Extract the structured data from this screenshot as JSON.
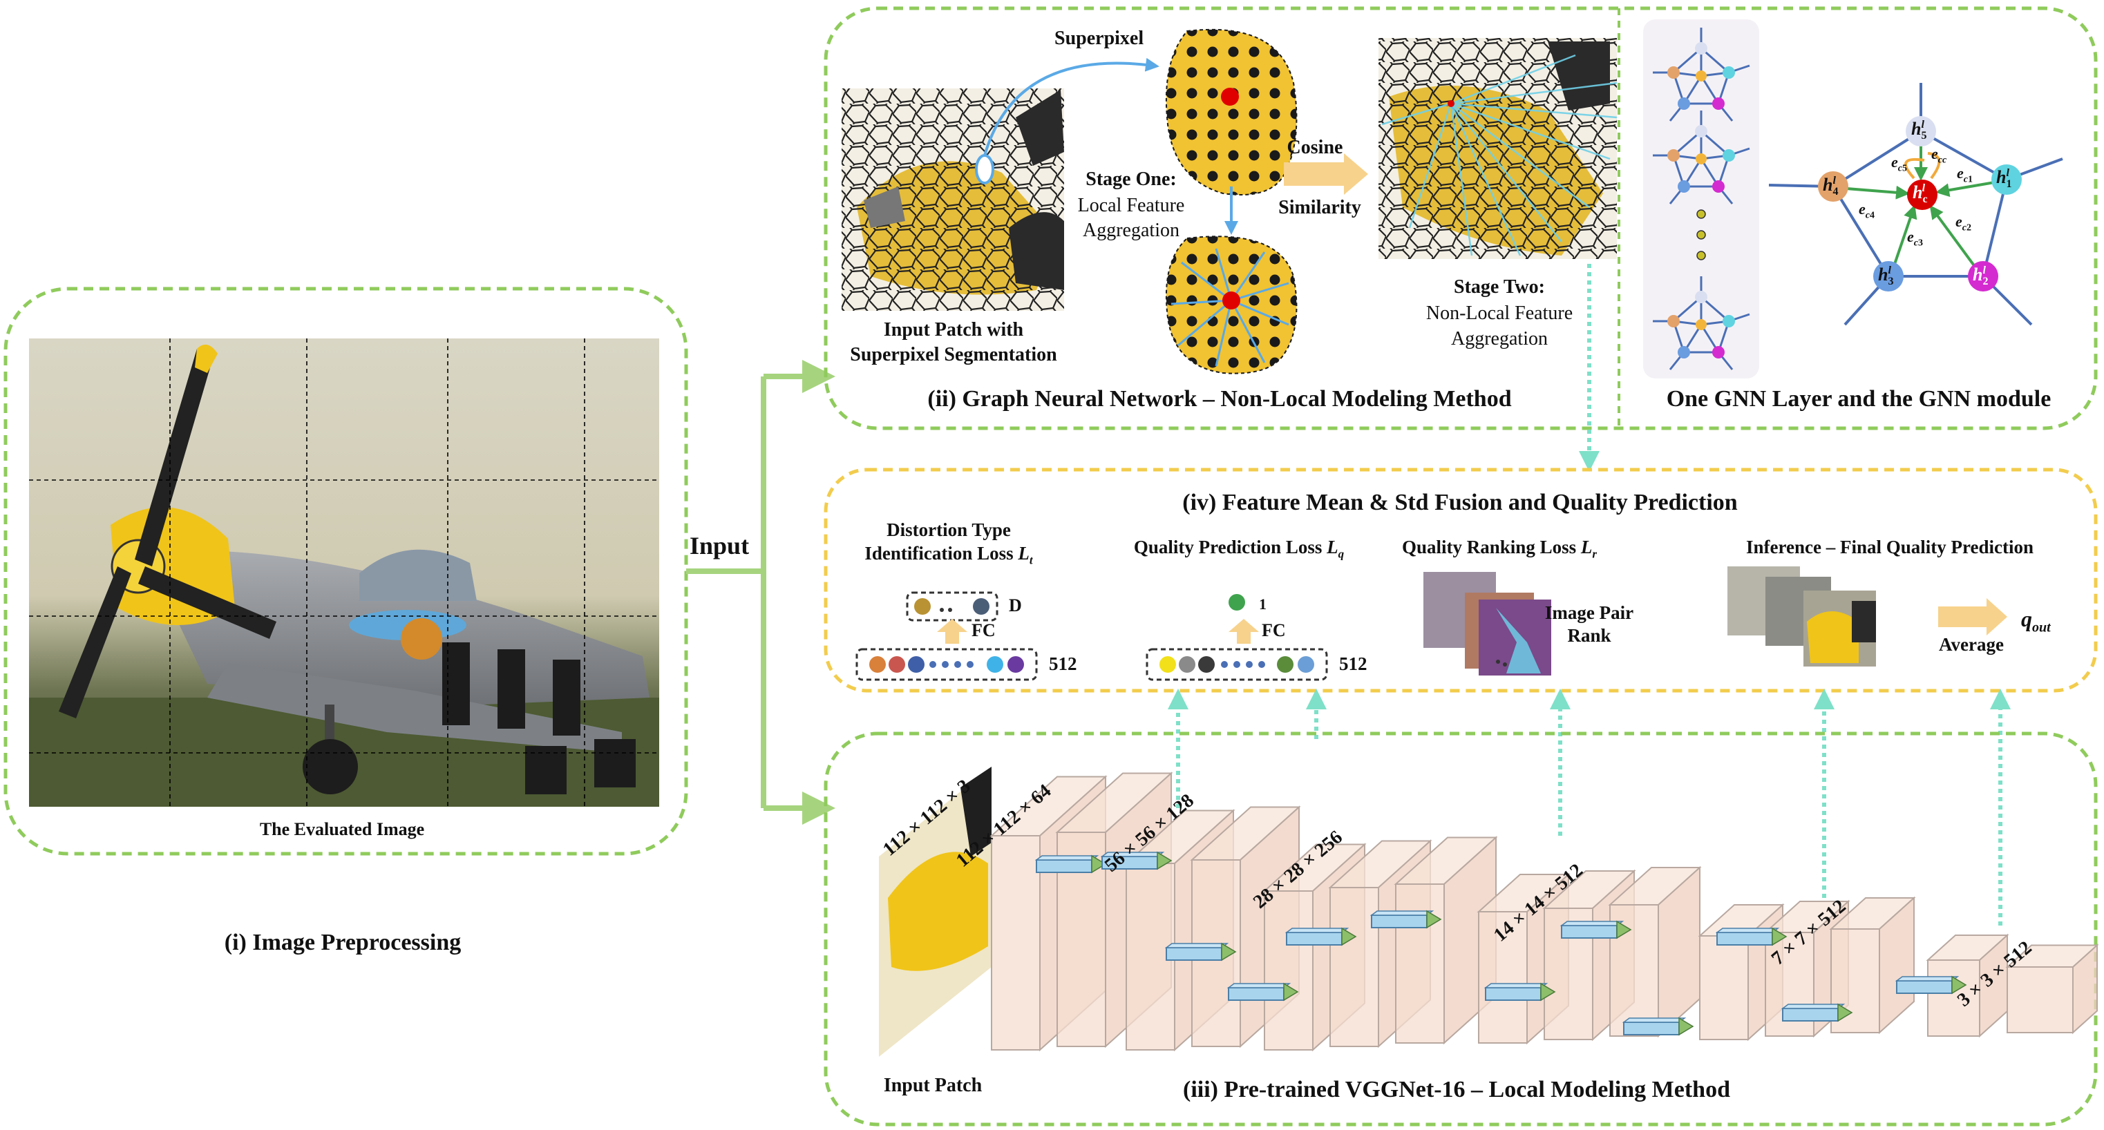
{
  "panels": {
    "preprocessing": {
      "image_caption": "The Evaluated Image",
      "title": "(i) Image Preprocessing"
    },
    "input_label": "Input",
    "gnn": {
      "title": "(ii) Graph Neural Network – Non-Local Modeling Method",
      "superpixel": "Superpixel",
      "input_patch_caption_line1": "Input Patch with",
      "input_patch_caption_line2": "Superpixel Segmentation",
      "stage_one_line1": "Stage One:",
      "stage_one_line2": "Local Feature",
      "stage_one_line3": "Aggregation",
      "cosine_line1": "Cosine",
      "cosine_line2": "Similarity",
      "stage_two_line1": "Stage Two:",
      "stage_two_line2": "Non-Local Feature",
      "stage_two_line3": "Aggregation"
    },
    "gnn_layer": {
      "title": "One GNN Layer and the GNN module",
      "nodes": [
        "h5",
        "h4",
        "hc",
        "h1",
        "h3",
        "h2"
      ],
      "edges": [
        "e_c5",
        "e_cc",
        "e_c1",
        "e_c4",
        "e_c3",
        "e_c2"
      ]
    },
    "fusion": {
      "title": "(iv) Feature Mean & Std Fusion and Quality Prediction",
      "distortion_line1": "Distortion Type",
      "distortion_line2": "Identification Loss",
      "distortion_sym": "L",
      "distortion_sub": "t",
      "quality_pred": "Quality Prediction Loss",
      "quality_pred_sym": "L",
      "quality_pred_sub": "q",
      "ranking": "Quality Ranking Loss",
      "ranking_sym": "L",
      "ranking_sub": "r",
      "inference": "Inference – Final Quality Prediction",
      "fc": "FC",
      "d_label": "D",
      "one_label": "1",
      "dim512": "512",
      "image_pair_line1": "Image Pair",
      "image_pair_line2": "Rank",
      "average": "Average",
      "q_out": "q",
      "q_out_sub": "out"
    },
    "vgg": {
      "title": "(iii) Pre-trained VGGNet-16 – Local Modeling Method",
      "input_patch": "Input Patch",
      "dims": [
        "112 × 112 × 3",
        "112 × 112 × 64",
        "56 × 56 × 128",
        "28 × 28 × 256",
        "14 × 14 × 512",
        "7 × 7 × 512",
        "3 × 3 × 512"
      ]
    }
  },
  "colors": {
    "panel_green": "#8fcb5c",
    "panel_yellow": "#f2cc4d",
    "arrow_green": "#a6d47e",
    "teal_dotted": "#7ee0c8",
    "block_fill": "#f6ddd0",
    "block_edge": "#b8a8a0",
    "node_blue": "#4a6fb5",
    "superpixel_yellow": "#f1c232"
  }
}
